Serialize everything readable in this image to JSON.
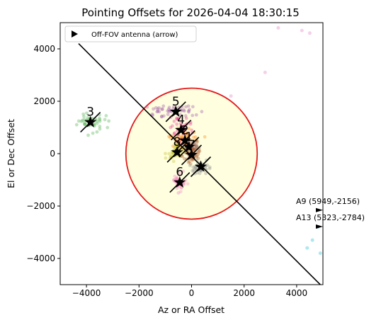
{
  "chart_data": {
    "type": "scatter",
    "title": "Pointing Offsets for 2026-04-04 18:30:15",
    "xlabel": "Az or RA Offset",
    "ylabel": "El or Dec Offset",
    "xlim": [
      -5000,
      5000
    ],
    "ylim": [
      -5000,
      5000
    ],
    "x_ticks": [
      -4000,
      -2000,
      0,
      2000,
      4000
    ],
    "y_ticks": [
      -4000,
      -2000,
      0,
      2000,
      4000
    ],
    "x_tick_labels": [
      "−4000",
      "−2000",
      "0",
      "2000",
      "4000"
    ],
    "y_tick_labels": [
      "−4000",
      "−2000",
      "0",
      "2000",
      "4000"
    ],
    "grid": false,
    "legend": {
      "position": "top-left",
      "entries": [
        {
          "label": "Off-FOV antenna (arrow)",
          "marker": "triangle-right"
        }
      ]
    },
    "circle": {
      "center": [
        0,
        0
      ],
      "radius": 2500,
      "edge_color": "#e31a1c",
      "fill_color": "#ffffe0"
    },
    "diagonal_line": {
      "x": [
        -4300,
        4900
      ],
      "y": [
        4200,
        -5000
      ],
      "color": "#000000"
    },
    "antennas": [
      {
        "label": "3",
        "x": -3850,
        "y": 1200,
        "color": "#4daf4a",
        "cluster_spread": [
          400,
          280
        ]
      },
      {
        "label": "5",
        "x": -600,
        "y": 1600,
        "color": "#984ea3",
        "cluster_spread": [
          700,
          200
        ]
      },
      {
        "label": "4",
        "x": -400,
        "y": 900,
        "color": "#e7298a",
        "cluster_spread": [
          350,
          350
        ]
      },
      {
        "label": "2",
        "x": -250,
        "y": 500,
        "color": "#ff7f00",
        "cluster_spread": [
          450,
          350
        ]
      },
      {
        "label": "1",
        "x": -100,
        "y": 250,
        "color": "#8c564b",
        "cluster_spread": [
          300,
          300
        ]
      },
      {
        "label": "8",
        "x": -550,
        "y": 50,
        "color": "#bcbd22",
        "cluster_spread": [
          300,
          250
        ]
      },
      {
        "label": "7",
        "x": 0,
        "y": -50,
        "color": "#a65628",
        "cluster_spread": [
          300,
          250
        ]
      },
      {
        "label": "6",
        "x": -450,
        "y": -1100,
        "color": "#f781bf",
        "cluster_spread": [
          200,
          250
        ]
      },
      {
        "label": "",
        "x": 350,
        "y": -500,
        "color": "#8c8c8c",
        "cluster_spread": [
          250,
          250
        ]
      }
    ],
    "background_clusters": [
      {
        "color": "#e377c2",
        "x": [
          -500,
          1500,
          3300,
          4200,
          4500,
          2800
        ],
        "y": [
          -1500,
          2200,
          4800,
          4700,
          4600,
          3100
        ]
      },
      {
        "color": "#17becf",
        "x": [
          4400,
          4600,
          4800,
          4900
        ],
        "y": [
          -3600,
          -3300,
          -2800,
          -3800
        ]
      }
    ],
    "off_fov": [
      {
        "label": "A9 (5949,-2156)",
        "arrow_x": 5000,
        "arrow_y": -2156
      },
      {
        "label": "A13 (5323,-2784)",
        "arrow_x": 5000,
        "arrow_y": -2784
      }
    ],
    "colors": {
      "star": "#000000",
      "axis": "#000000"
    }
  }
}
